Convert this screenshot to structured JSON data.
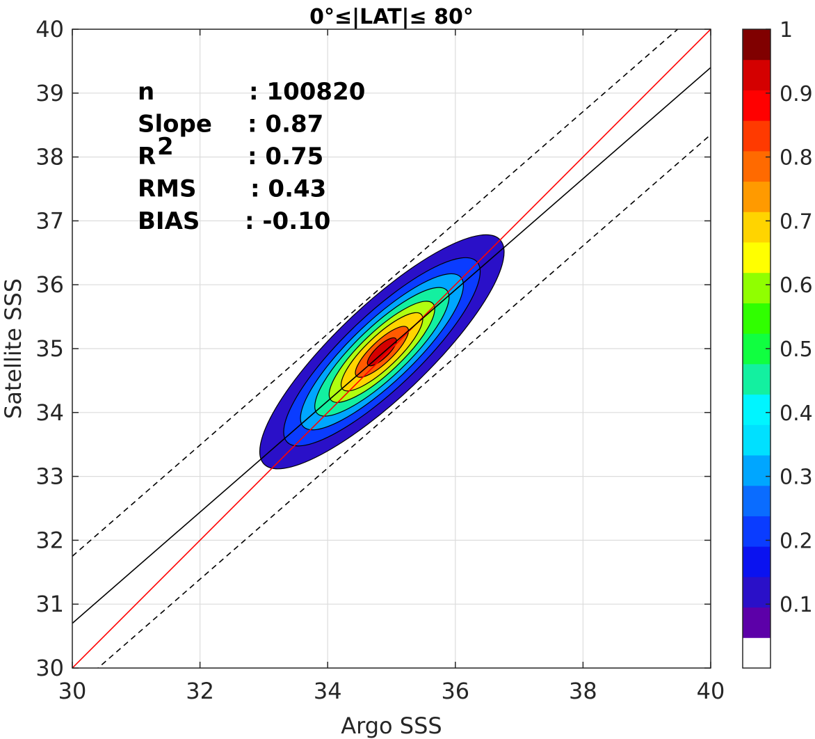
{
  "chart_data": {
    "type": "heatmap",
    "subtype": "density contour with regression lines",
    "title": "0°≤|LAT|≤ 80°",
    "xlabel": "Argo SSS",
    "ylabel": "Satellite SSS",
    "xlim": [
      30,
      40
    ],
    "ylim": [
      30,
      40
    ],
    "xticks": [
      "30",
      "32",
      "34",
      "36",
      "38",
      "40"
    ],
    "yticks": [
      "30",
      "31",
      "32",
      "33",
      "34",
      "35",
      "36",
      "37",
      "38",
      "39",
      "40"
    ],
    "grid": true,
    "stats": [
      {
        "label": "n",
        "value": ": 100820"
      },
      {
        "label": "Slope",
        "value": ": 0.87"
      },
      {
        "label": "R",
        "sup": "2",
        "value": ": 0.75"
      },
      {
        "label": "RMS",
        "value": ": 0.43"
      },
      {
        "label": "BIAS",
        "value": ": -0.10"
      }
    ],
    "lines": [
      {
        "name": "one-to-one",
        "color": "#ff0000",
        "style": "solid",
        "slope": 1.0,
        "intercept": 0.0
      },
      {
        "name": "fit",
        "color": "#000000",
        "style": "solid",
        "slope": 0.87,
        "intercept": 4.6
      },
      {
        "name": "fit-upper",
        "color": "#000000",
        "style": "dashed",
        "slope": 0.87,
        "intercept": 5.65
      },
      {
        "name": "fit-lower",
        "color": "#000000",
        "style": "dashed",
        "slope": 0.87,
        "intercept": 3.55
      }
    ],
    "density_center": {
      "x": 34.85,
      "y": 34.95
    },
    "contour_levels": [
      0.05,
      0.2,
      0.35,
      0.5,
      0.65,
      0.8,
      0.95
    ],
    "contour_colors": [
      "#2a10c8",
      "#0a3cff",
      "#00a6ff",
      "#13f0a0",
      "#b0ff10",
      "#ffd400",
      "#ff5a00",
      "#d40000"
    ],
    "colorbar": {
      "range": [
        0,
        1
      ],
      "ticks": [
        "0.1",
        "0.2",
        "0.3",
        "0.4",
        "0.5",
        "0.6",
        "0.7",
        "0.8",
        "0.9",
        "1"
      ],
      "colors": [
        "#ffffff",
        "#5c00a8",
        "#2a10c8",
        "#0a12f0",
        "#0a3cff",
        "#0a6cff",
        "#00a6ff",
        "#00e0ff",
        "#00f5ff",
        "#13f0a0",
        "#10ff40",
        "#30ff00",
        "#90ff00",
        "#ffff00",
        "#ffd400",
        "#ff9a00",
        "#ff6a00",
        "#ff3a00",
        "#ff0000",
        "#d40000",
        "#800000"
      ]
    }
  }
}
